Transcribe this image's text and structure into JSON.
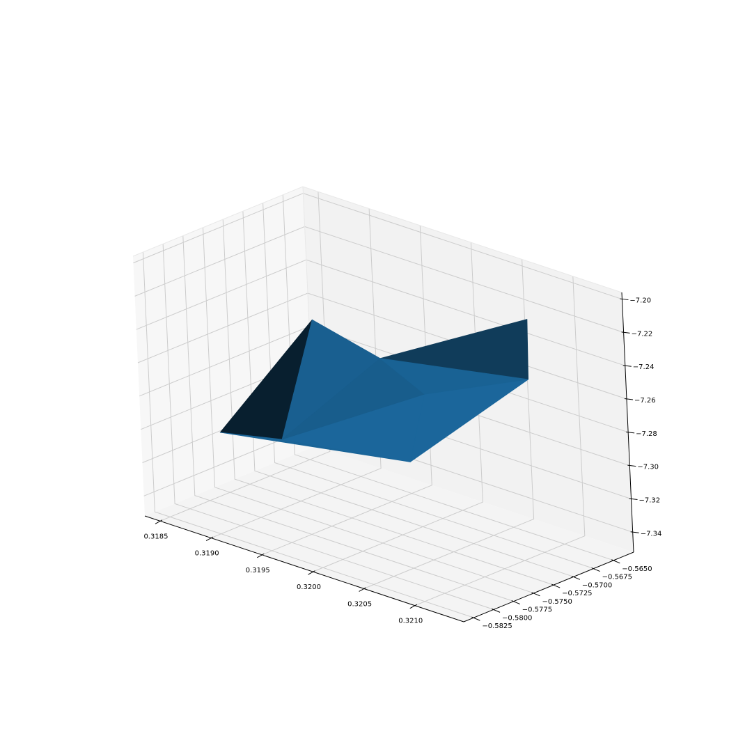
{
  "chart_data": {
    "type": "surface3d",
    "title": "",
    "xlabel": "",
    "ylabel": "",
    "zlabel": "",
    "grid": true,
    "xlim": [
      0.31835,
      0.32148
    ],
    "ylim": [
      -0.58375,
      -0.5625
    ],
    "zlim": [
      -7.352,
      -7.196
    ],
    "x_ticks": [
      0.3185,
      0.319,
      0.3195,
      0.32,
      0.3205,
      0.321
    ],
    "x_tick_labels": [
      "0.3185",
      "0.3190",
      "0.3195",
      "0.3200",
      "0.3205",
      "0.3210"
    ],
    "y_ticks": [
      -0.5825,
      -0.58,
      -0.5775,
      -0.575,
      -0.5725,
      -0.57,
      -0.5675,
      -0.565
    ],
    "y_tick_labels": [
      "−0.5825",
      "−0.5800",
      "−0.5775",
      "−0.5750",
      "−0.5725",
      "−0.5700",
      "−0.5675",
      "−0.5650"
    ],
    "z_ticks": [
      -7.34,
      -7.32,
      -7.3,
      -7.28,
      -7.26,
      -7.24,
      -7.22,
      -7.2
    ],
    "z_tick_labels": [
      "−7.34",
      "−7.32",
      "−7.30",
      "−7.28",
      "−7.26",
      "−7.24",
      "−7.22",
      "−7.20"
    ],
    "colors": {
      "surface": "#1f77b4",
      "pane_left": "#f7f7f7",
      "pane_back": "#f2f2f2",
      "pane_floor": "#f4f4f4",
      "grid": "#cccccc",
      "axis_line": "#000000"
    },
    "vertices": [
      {
        "x": 0.31855,
        "y": -0.5765,
        "z": -7.312
      },
      {
        "x": 0.31895,
        "y": -0.5695,
        "z": -7.25
      },
      {
        "x": 0.31918,
        "y": -0.5767,
        "z": -7.303
      },
      {
        "x": 0.32078,
        "y": -0.5808,
        "z": -7.276
      },
      {
        "x": 0.32136,
        "y": -0.573,
        "z": -7.23
      },
      {
        "x": 0.32058,
        "y": -0.5632,
        "z": -7.229
      },
      {
        "x": 0.32032,
        "y": -0.573,
        "z": -7.26
      },
      {
        "x": 0.31965,
        "y": -0.57,
        "z": -7.258
      }
    ],
    "faces": [
      {
        "v": [
          2,
          0,
          1
        ],
        "shade": 0.26
      },
      {
        "v": [
          7,
          5,
          4
        ],
        "shade": 0.5
      },
      {
        "v": [
          2,
          0,
          3
        ],
        "shade": 0.84
      },
      {
        "v": [
          2,
          3,
          6
        ],
        "shade": 0.86
      },
      {
        "v": [
          6,
          3,
          4
        ],
        "shade": 0.86
      },
      {
        "v": [
          2,
          1,
          7
        ],
        "shade": 0.8
      },
      {
        "v": [
          2,
          7,
          6
        ],
        "shade": 0.78
      },
      {
        "v": [
          7,
          4,
          6
        ],
        "shade": 0.82
      }
    ]
  }
}
